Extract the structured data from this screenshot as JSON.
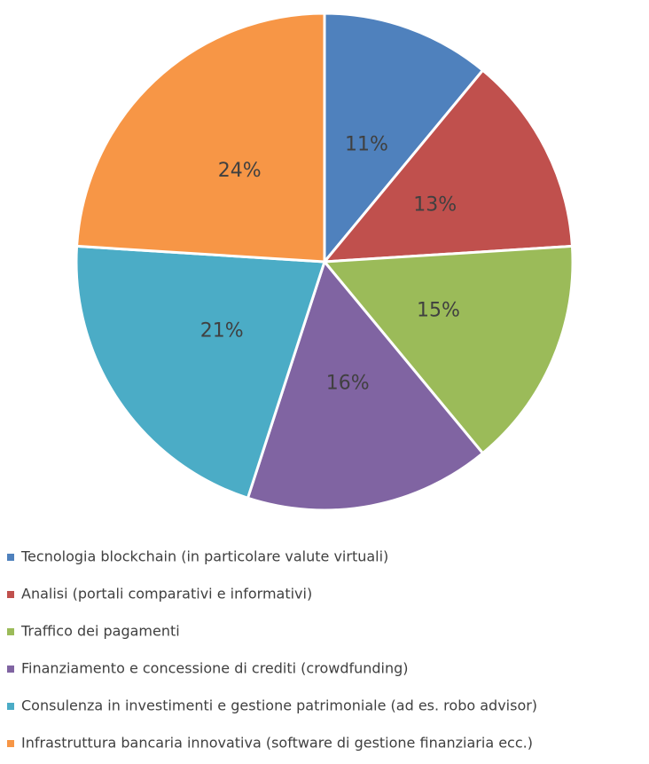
{
  "chart_data": {
    "type": "pie",
    "categories": [
      "Tecnologia blockchain (in particolare valute virtuali)",
      "Analisi (portali comparativi e informativi)",
      "Traffico dei pagamenti",
      "Finanziamento e concessione di crediti (crowdfunding)",
      "Consulenza in investimenti e gestione patrimoniale (ad es. robo advisor)",
      "Infrastruttura bancaria innovativa (software di gestione finanziaria ecc.)"
    ],
    "values": [
      11,
      13,
      15,
      16,
      21,
      24
    ],
    "value_labels": [
      "11%",
      "13%",
      "15%",
      "16%",
      "21%",
      "24%"
    ],
    "colors": [
      "#4f81bd",
      "#c0504d",
      "#9bbb59",
      "#8064a2",
      "#4bacc6",
      "#f79646"
    ],
    "legend": "bottom"
  }
}
